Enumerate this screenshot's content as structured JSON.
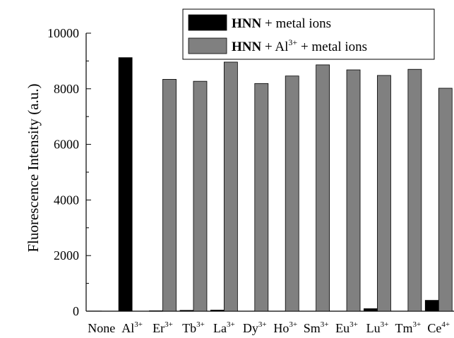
{
  "chart_data": {
    "type": "bar",
    "ylabel": "Fluorescence Intensity (a.u.)",
    "ylim": [
      0,
      10000
    ],
    "yticks": [
      0,
      2000,
      4000,
      6000,
      8000,
      10000
    ],
    "categories": [
      {
        "base": "None",
        "sup": ""
      },
      {
        "base": "Al",
        "sup": "3+"
      },
      {
        "base": "Er",
        "sup": "3+"
      },
      {
        "base": "Tb",
        "sup": "3+"
      },
      {
        "base": "La",
        "sup": "3+"
      },
      {
        "base": "Dy",
        "sup": "3+"
      },
      {
        "base": "Ho",
        "sup": "3+"
      },
      {
        "base": "Sm",
        "sup": "3+"
      },
      {
        "base": "Eu",
        "sup": "3+"
      },
      {
        "base": "Lu",
        "sup": "3+"
      },
      {
        "base": "Tm",
        "sup": "3+"
      },
      {
        "base": "Ce",
        "sup": "4+"
      }
    ],
    "series": [
      {
        "name": "HNN + metal ions",
        "legend_parts": [
          {
            "text": "HNN",
            "bold": true
          },
          {
            "text": " + metal ions"
          }
        ],
        "color": "#000000",
        "values": [
          5,
          9120,
          15,
          30,
          40,
          0,
          0,
          0,
          0,
          90,
          0,
          390
        ]
      },
      {
        "name": "HNN + Al3+ + metal ions",
        "legend_parts": [
          {
            "text": "HNN",
            "bold": true
          },
          {
            "text": " + Al"
          },
          {
            "text": "3+",
            "sup": true
          },
          {
            "text": " + metal ions"
          }
        ],
        "color": "#808080",
        "values": [
          0,
          0,
          8340,
          8270,
          8960,
          8190,
          8460,
          8860,
          8680,
          8480,
          8700,
          8020
        ]
      }
    ],
    "legend_position": "top-right",
    "grid": false
  }
}
